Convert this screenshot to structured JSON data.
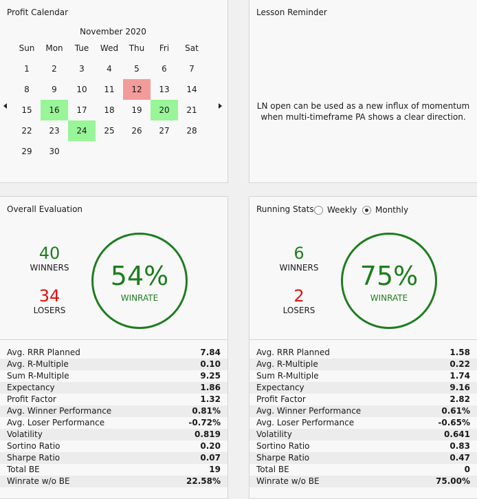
{
  "calendar": {
    "title": "Profit Calendar",
    "month": "November 2020",
    "weekdays": [
      "Sun",
      "Mon",
      "Tue",
      "Wed",
      "Thu",
      "Fri",
      "Sat"
    ],
    "days": [
      {
        "d": "1",
        "col": 0,
        "row": 0,
        "s": ""
      },
      {
        "d": "2",
        "col": 1,
        "row": 0,
        "s": ""
      },
      {
        "d": "3",
        "col": 2,
        "row": 0,
        "s": ""
      },
      {
        "d": "4",
        "col": 3,
        "row": 0,
        "s": ""
      },
      {
        "d": "5",
        "col": 4,
        "row": 0,
        "s": ""
      },
      {
        "d": "6",
        "col": 5,
        "row": 0,
        "s": ""
      },
      {
        "d": "7",
        "col": 6,
        "row": 0,
        "s": ""
      },
      {
        "d": "8",
        "col": 0,
        "row": 1,
        "s": ""
      },
      {
        "d": "9",
        "col": 1,
        "row": 1,
        "s": ""
      },
      {
        "d": "10",
        "col": 2,
        "row": 1,
        "s": ""
      },
      {
        "d": "11",
        "col": 3,
        "row": 1,
        "s": ""
      },
      {
        "d": "12",
        "col": 4,
        "row": 1,
        "s": "loss"
      },
      {
        "d": "13",
        "col": 5,
        "row": 1,
        "s": ""
      },
      {
        "d": "14",
        "col": 6,
        "row": 1,
        "s": ""
      },
      {
        "d": "15",
        "col": 0,
        "row": 2,
        "s": ""
      },
      {
        "d": "16",
        "col": 1,
        "row": 2,
        "s": "win"
      },
      {
        "d": "17",
        "col": 2,
        "row": 2,
        "s": ""
      },
      {
        "d": "18",
        "col": 3,
        "row": 2,
        "s": ""
      },
      {
        "d": "19",
        "col": 4,
        "row": 2,
        "s": ""
      },
      {
        "d": "20",
        "col": 5,
        "row": 2,
        "s": "win"
      },
      {
        "d": "21",
        "col": 6,
        "row": 2,
        "s": ""
      },
      {
        "d": "22",
        "col": 0,
        "row": 3,
        "s": ""
      },
      {
        "d": "23",
        "col": 1,
        "row": 3,
        "s": ""
      },
      {
        "d": "24",
        "col": 2,
        "row": 3,
        "s": "win"
      },
      {
        "d": "25",
        "col": 3,
        "row": 3,
        "s": ""
      },
      {
        "d": "26",
        "col": 4,
        "row": 3,
        "s": ""
      },
      {
        "d": "27",
        "col": 5,
        "row": 3,
        "s": ""
      },
      {
        "d": "28",
        "col": 6,
        "row": 3,
        "s": ""
      },
      {
        "d": "29",
        "col": 0,
        "row": 4,
        "s": ""
      },
      {
        "d": "30",
        "col": 1,
        "row": 4,
        "s": ""
      }
    ]
  },
  "lesson": {
    "title": "Lesson Reminder",
    "line1": "LN open can be used as a new influx of momentum",
    "line2": "when multi-timeframe PA shows a clear direction."
  },
  "overall": {
    "title": "Overall Evaluation",
    "winners": "40",
    "winners_label": "WINNERS",
    "losers": "34",
    "losers_label": "LOSERS",
    "winrate": "54%",
    "winrate_label": "WINRATE",
    "stats": [
      {
        "label": "Avg. RRR Planned",
        "value": "7.84"
      },
      {
        "label": "Avg. R-Multiple",
        "value": "0.10"
      },
      {
        "label": "Sum R-Multiple",
        "value": "9.25"
      },
      {
        "label": "Expectancy",
        "value": "1.86"
      },
      {
        "label": "Profit Factor",
        "value": "1.32"
      },
      {
        "label": "Avg. Winner Performance",
        "value": "0.81%"
      },
      {
        "label": "Avg. Loser Performance",
        "value": "-0.72%"
      },
      {
        "label": "Volatility",
        "value": "0.819"
      },
      {
        "label": "Sortino Ratio",
        "value": "0.20"
      },
      {
        "label": "Sharpe Ratio",
        "value": "0.07"
      },
      {
        "label": "Total BE",
        "value": "19"
      },
      {
        "label": "Winrate w/o BE",
        "value": "22.58%"
      }
    ]
  },
  "running": {
    "title": "Running Stats",
    "option_weekly": "Weekly",
    "option_monthly": "Monthly",
    "selected": "Monthly",
    "winners": "6",
    "winners_label": "WINNERS",
    "losers": "2",
    "losers_label": "LOSERS",
    "winrate": "75%",
    "winrate_label": "WINRATE",
    "stats": [
      {
        "label": "Avg. RRR Planned",
        "value": "1.58"
      },
      {
        "label": "Avg. R-Multiple",
        "value": "0.22"
      },
      {
        "label": "Sum R-Multiple",
        "value": "1.74"
      },
      {
        "label": "Expectancy",
        "value": "9.16"
      },
      {
        "label": "Profit Factor",
        "value": "2.82"
      },
      {
        "label": "Avg. Winner Performance",
        "value": "0.61%"
      },
      {
        "label": "Avg. Loser Performance",
        "value": "-0.65%"
      },
      {
        "label": "Volatility",
        "value": "0.641"
      },
      {
        "label": "Sortino Ratio",
        "value": "0.83"
      },
      {
        "label": "Sharpe Ratio",
        "value": "0.47"
      },
      {
        "label": "Total BE",
        "value": "0"
      },
      {
        "label": "Winrate w/o BE",
        "value": "75.00%"
      }
    ]
  },
  "colors": {
    "win_day": "#98f598",
    "loss_day": "#f29b9b",
    "winner_text": "#1e7d1e",
    "loser_text": "#e01010",
    "ring": "#1e7d1e"
  }
}
